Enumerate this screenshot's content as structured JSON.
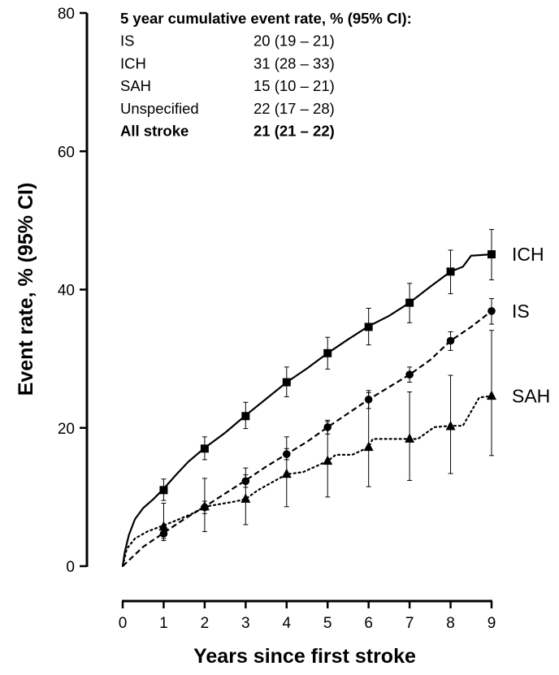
{
  "chart_data": {
    "type": "line",
    "xlabel": "Years since first stroke",
    "ylabel": "Event rate, % (95% CI)",
    "xlim": [
      0,
      9
    ],
    "ylim": [
      0,
      80
    ],
    "x_ticks": [
      "0",
      "1",
      "2",
      "3",
      "4",
      "5",
      "6",
      "7",
      "8",
      "9"
    ],
    "y_ticks": [
      "0",
      "20",
      "40",
      "60",
      "80"
    ],
    "grid": false,
    "legend": "none",
    "inset_table": {
      "header": "5 year cumulative event rate, % (95% CI):",
      "rows": [
        {
          "label": "IS",
          "value": "20 (19 – 21)",
          "bold": false
        },
        {
          "label": "ICH",
          "value": "31 (28 – 33)",
          "bold": false
        },
        {
          "label": "SAH",
          "value": "15 (10 – 21)",
          "bold": false
        },
        {
          "label": "Unspecified",
          "value": "22 (17 – 28)",
          "bold": false
        },
        {
          "label": "All stroke",
          "value": "21 (21 – 22)",
          "bold": true
        }
      ]
    },
    "series": [
      {
        "name": "ICH",
        "line_style": "solid",
        "marker": "square",
        "curve": [
          [
            0,
            0
          ],
          [
            0.05,
            2
          ],
          [
            0.15,
            4.5
          ],
          [
            0.3,
            6.8
          ],
          [
            0.5,
            8.4
          ],
          [
            0.75,
            9.7
          ],
          [
            1,
            11.2
          ],
          [
            1.3,
            13.2
          ],
          [
            1.6,
            15.1
          ],
          [
            2,
            17.1
          ],
          [
            2.5,
            19.3
          ],
          [
            3,
            21.8
          ],
          [
            3.5,
            24.2
          ],
          [
            4,
            26.6
          ],
          [
            4.5,
            28.6
          ],
          [
            5,
            30.8
          ],
          [
            5.5,
            32.8
          ],
          [
            6,
            34.7
          ],
          [
            6.5,
            36.2
          ],
          [
            7,
            38.1
          ],
          [
            7.5,
            40.4
          ],
          [
            8,
            42.6
          ],
          [
            8.3,
            43.3
          ],
          [
            8.5,
            44.9
          ],
          [
            9,
            45.1
          ]
        ],
        "points": [
          {
            "x": 1,
            "y": 11.0,
            "lo": 9.5,
            "hi": 12.6
          },
          {
            "x": 2,
            "y": 17.0,
            "lo": 15.4,
            "hi": 18.7
          },
          {
            "x": 3,
            "y": 21.7,
            "lo": 19.9,
            "hi": 23.7
          },
          {
            "x": 4,
            "y": 26.6,
            "lo": 24.5,
            "hi": 28.8
          },
          {
            "x": 5,
            "y": 30.8,
            "lo": 28.5,
            "hi": 33.1
          },
          {
            "x": 6,
            "y": 34.6,
            "lo": 32.0,
            "hi": 37.3
          },
          {
            "x": 7,
            "y": 38.1,
            "lo": 35.2,
            "hi": 40.9
          },
          {
            "x": 8,
            "y": 42.6,
            "lo": 39.4,
            "hi": 45.7
          },
          {
            "x": 9,
            "y": 45.1,
            "lo": 41.4,
            "hi": 48.7
          }
        ]
      },
      {
        "name": "IS",
        "line_style": "dashed",
        "marker": "circle",
        "curve": [
          [
            0,
            0
          ],
          [
            0.5,
            2.8
          ],
          [
            1,
            4.8
          ],
          [
            1.5,
            6.8
          ],
          [
            2,
            8.6
          ],
          [
            2.5,
            10.5
          ],
          [
            3,
            12.4
          ],
          [
            3.5,
            14.4
          ],
          [
            4,
            16.2
          ],
          [
            4.5,
            18.0
          ],
          [
            5,
            20.1
          ],
          [
            5.5,
            22.1
          ],
          [
            6,
            24.1
          ],
          [
            6.5,
            25.9
          ],
          [
            7,
            27.7
          ],
          [
            7.5,
            29.8
          ],
          [
            8,
            32.6
          ],
          [
            8.5,
            34.6
          ],
          [
            9,
            36.9
          ]
        ],
        "points": [
          {
            "x": 1,
            "y": 4.7,
            "lo": 3.7,
            "hi": 5.8
          },
          {
            "x": 2,
            "y": 8.5,
            "lo": 7.6,
            "hi": 9.4
          },
          {
            "x": 3,
            "y": 12.3,
            "lo": 11.4,
            "hi": 13.2
          },
          {
            "x": 4,
            "y": 16.2,
            "lo": 15.4,
            "hi": 17.0
          },
          {
            "x": 5,
            "y": 20.1,
            "lo": 19.1,
            "hi": 21.1
          },
          {
            "x": 6,
            "y": 24.1,
            "lo": 22.8,
            "hi": 25.4
          },
          {
            "x": 7,
            "y": 27.7,
            "lo": 26.6,
            "hi": 28.8
          },
          {
            "x": 8,
            "y": 32.6,
            "lo": 31.2,
            "hi": 33.9
          },
          {
            "x": 9,
            "y": 36.9,
            "lo": 35.0,
            "hi": 38.7
          }
        ]
      },
      {
        "name": "SAH",
        "line_style": "dotted",
        "marker": "triangle",
        "curve": [
          [
            0,
            0
          ],
          [
            0.1,
            2.5
          ],
          [
            0.3,
            4.0
          ],
          [
            0.6,
            5.0
          ],
          [
            1,
            5.9
          ],
          [
            1.3,
            6.6
          ],
          [
            1.7,
            7.6
          ],
          [
            2,
            8.6
          ],
          [
            2.3,
            8.9
          ],
          [
            2.7,
            9.3
          ],
          [
            3,
            9.7
          ],
          [
            3.3,
            11.0
          ],
          [
            3.7,
            12.3
          ],
          [
            4,
            13.3
          ],
          [
            4.4,
            13.6
          ],
          [
            4.7,
            14.4
          ],
          [
            5,
            15.2
          ],
          [
            5.2,
            16.1
          ],
          [
            5.6,
            16.1
          ],
          [
            6,
            17.2
          ],
          [
            6.1,
            18.4
          ],
          [
            7,
            18.4
          ],
          [
            7.2,
            18.4
          ],
          [
            7.6,
            20.1
          ],
          [
            8,
            20.3
          ],
          [
            8.3,
            20.3
          ],
          [
            8.7,
            24.4
          ],
          [
            9,
            24.6
          ]
        ],
        "points": [
          {
            "x": 1,
            "y": 5.7,
            "lo": 4.0,
            "hi": 9.1
          },
          {
            "x": 2,
            "y": 8.6,
            "lo": 5.0,
            "hi": 12.7
          },
          {
            "x": 3,
            "y": 9.7,
            "lo": 6.0,
            "hi": 14.2
          },
          {
            "x": 4,
            "y": 13.3,
            "lo": 8.6,
            "hi": 18.7
          },
          {
            "x": 5,
            "y": 15.2,
            "lo": 10.0,
            "hi": 20.9
          },
          {
            "x": 6,
            "y": 17.2,
            "lo": 11.5,
            "hi": 25.1
          },
          {
            "x": 7,
            "y": 18.4,
            "lo": 12.4,
            "hi": 25.2
          },
          {
            "x": 8,
            "y": 20.2,
            "lo": 13.4,
            "hi": 27.6
          },
          {
            "x": 9,
            "y": 24.6,
            "lo": 16.0,
            "hi": 34.1
          }
        ]
      }
    ]
  }
}
